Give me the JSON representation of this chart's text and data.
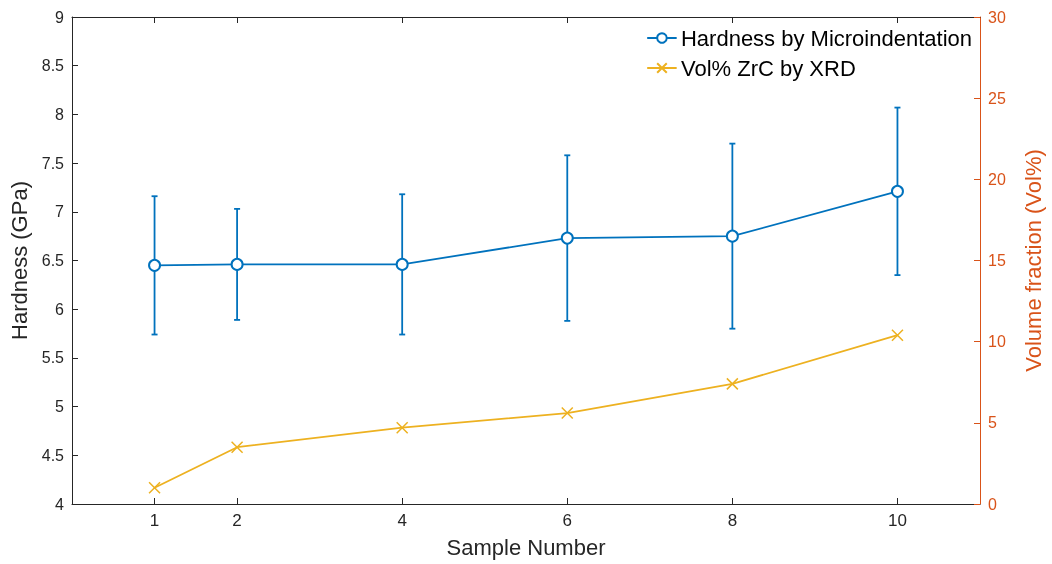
{
  "chart_data": {
    "type": "line",
    "xlabel": "Sample Number",
    "ylabel": "Hardness (GPa)",
    "y2label": "Volume fraction (Vol%)",
    "x": [
      1,
      2,
      4,
      6,
      8,
      10
    ],
    "series": [
      {
        "name": "Hardness by Microindentation",
        "color": "#0072bd",
        "marker": "circle",
        "values": [
          6.45,
          6.46,
          6.46,
          6.73,
          6.75,
          7.21
        ],
        "errors": [
          0.71,
          0.57,
          0.72,
          0.85,
          0.95,
          0.86
        ]
      },
      {
        "name": "Vol% ZrC by XRD",
        "color": "#edb120",
        "marker": "cross",
        "axis": "y2",
        "values": [
          1.0,
          3.5,
          4.7,
          5.6,
          7.4,
          10.4
        ]
      }
    ],
    "xlim": [
      0,
      11
    ],
    "xticks": [
      1,
      2,
      4,
      6,
      8,
      10
    ],
    "ylim": [
      4,
      9
    ],
    "yticks": [
      4,
      4.5,
      5,
      5.5,
      6,
      6.5,
      7,
      7.5,
      8,
      8.5,
      9
    ],
    "y2lim": [
      0,
      30
    ],
    "y2ticks": [
      0,
      5,
      10,
      15,
      20,
      25,
      30
    ],
    "grid": false,
    "legend": "top right",
    "line_style": "solid"
  }
}
